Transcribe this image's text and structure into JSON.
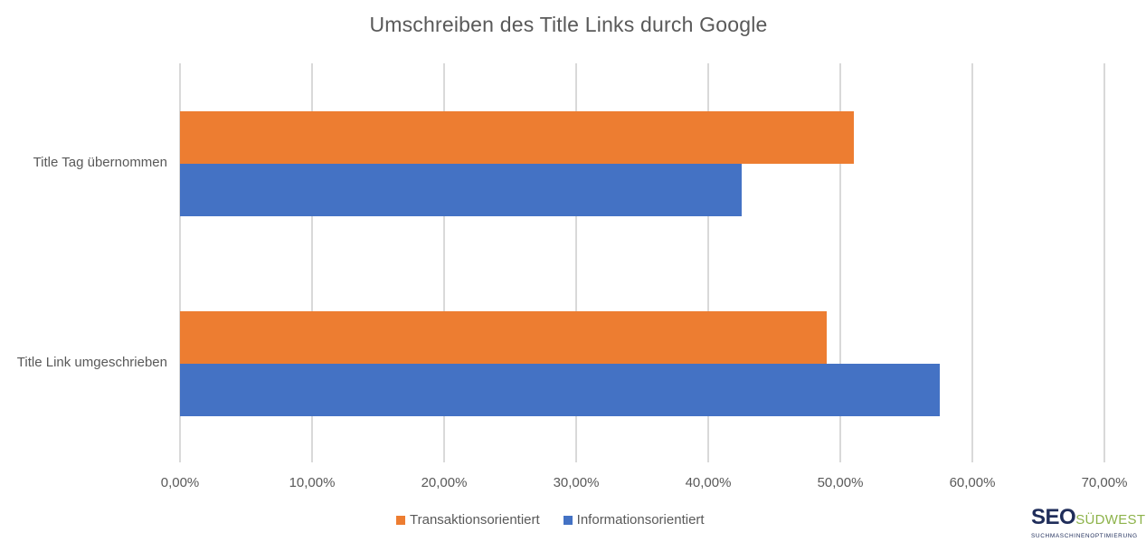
{
  "chart_data": {
    "type": "bar",
    "orientation": "horizontal",
    "title": "Umschreiben des Title Links durch Google",
    "xlabel": "",
    "ylabel": "",
    "xlim": [
      0,
      0.7
    ],
    "x_ticks": [
      "0,00%",
      "10,00%",
      "20,00%",
      "30,00%",
      "40,00%",
      "50,00%",
      "60,00%",
      "70,00%"
    ],
    "grid": "vertical",
    "legend_position": "bottom",
    "categories": [
      "Title Tag übernommen",
      "Title Link umgeschrieben"
    ],
    "series": [
      {
        "name": "Transaktionsorientiert",
        "color": "#ED7D31",
        "values": [
          0.51,
          0.49
        ]
      },
      {
        "name": "Informationsorientiert",
        "color": "#4472C4",
        "values": [
          0.425,
          0.575
        ]
      }
    ]
  },
  "logo": {
    "main_left": "SEO",
    "main_right": "SÜDWEST",
    "subtitle": "SUCHMASCHINENOPTIMIERUNG"
  }
}
